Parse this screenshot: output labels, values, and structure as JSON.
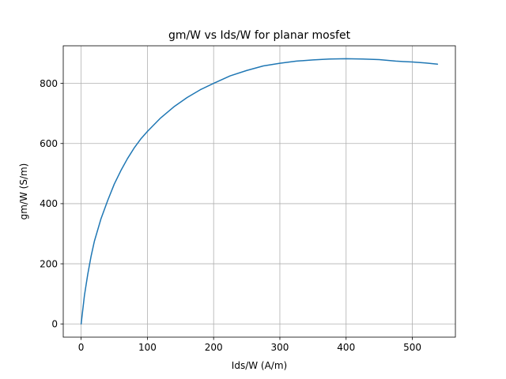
{
  "chart_data": {
    "type": "line",
    "title": "gm/W vs Ids/W for planar mosfet",
    "xlabel": "Ids/W (A/m)",
    "ylabel": "gm/W (S/m)",
    "xlim": [
      -27,
      565
    ],
    "ylim": [
      -44,
      925
    ],
    "xticks": [
      0,
      100,
      200,
      300,
      400,
      500
    ],
    "yticks": [
      0,
      200,
      400,
      600,
      800
    ],
    "grid": true,
    "legend": "none",
    "series": [
      {
        "color": "#1f77b4",
        "x": [
          0,
          5,
          10,
          15,
          20,
          30,
          40,
          50,
          60,
          70,
          80,
          90,
          100,
          120,
          140,
          160,
          180,
          200,
          225,
          250,
          275,
          300,
          325,
          350,
          375,
          400,
          425,
          450,
          475,
          500,
          520,
          538
        ],
        "y": [
          0,
          95,
          165,
          225,
          275,
          350,
          410,
          465,
          510,
          550,
          585,
          615,
          640,
          685,
          722,
          753,
          779,
          800,
          825,
          843,
          858,
          867,
          874,
          878,
          881,
          882,
          881,
          879,
          874,
          871,
          868,
          864
        ]
      }
    ]
  }
}
